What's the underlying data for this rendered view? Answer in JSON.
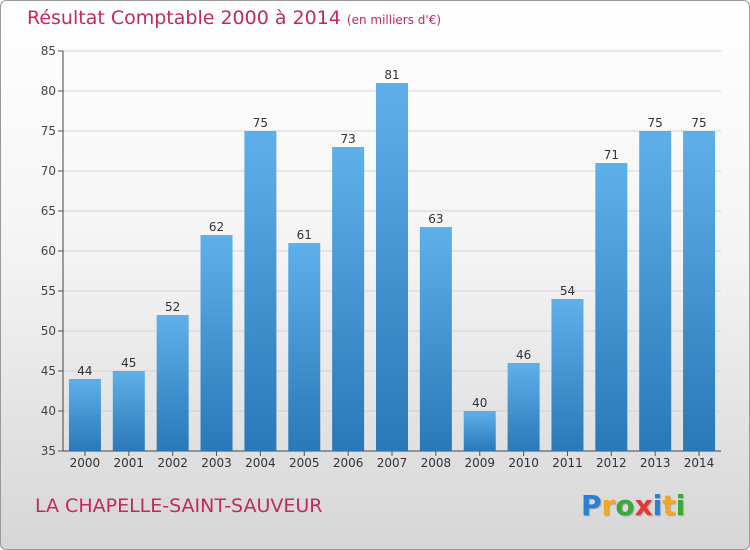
{
  "header": {
    "title": "Résultat Comptable 2000 à 2014",
    "subtitle": "(en milliers d'€)"
  },
  "footer": {
    "commune": "LA CHAPELLE-SAINT-SAUVEUR",
    "logo_text": "Proxiti",
    "logo_letters": [
      "P",
      "r",
      "o",
      "x",
      "i",
      "t",
      "i"
    ],
    "logo_colors": [
      "#2b7fd0",
      "#f5a623",
      "#3aa83a",
      "#e03a3a",
      "#2b7fd0",
      "#f5a623",
      "#3aa83a"
    ]
  },
  "chart_data": {
    "type": "bar",
    "title": "Résultat Comptable 2000 à 2014",
    "subtitle": "(en milliers d'€)",
    "xlabel": "",
    "ylabel": "",
    "categories": [
      "2000",
      "2001",
      "2002",
      "2003",
      "2004",
      "2005",
      "2006",
      "2007",
      "2008",
      "2009",
      "2010",
      "2011",
      "2012",
      "2013",
      "2014"
    ],
    "values": [
      44,
      45,
      52,
      62,
      75,
      61,
      73,
      81,
      63,
      40,
      46,
      54,
      71,
      75,
      75
    ],
    "ylim": [
      35,
      85
    ],
    "yticks": [
      35,
      40,
      45,
      50,
      55,
      60,
      65,
      70,
      75,
      80,
      85
    ],
    "grid": true,
    "bar_color_top": "#5eb0ea",
    "bar_color_bottom": "#2a78b8",
    "text_color": "#c3295a"
  }
}
